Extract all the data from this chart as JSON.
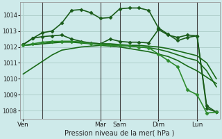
{
  "background_color": "#ceeaea",
  "grid_color": "#b0d0cc",
  "ylim": [
    1007.5,
    1014.8
  ],
  "yticks": [
    1008,
    1009,
    1010,
    1011,
    1012,
    1013,
    1014
  ],
  "xlabel": "Pression niveau de la mer( hPa )",
  "day_labels": [
    "Ven",
    "Mar",
    "Sam",
    "Dim",
    "Lun"
  ],
  "day_x": [
    0,
    48,
    60,
    84,
    108
  ],
  "xlim": [
    -2,
    122
  ],
  "vline_x": [
    12,
    48,
    60,
    84,
    108
  ],
  "vline_color": "#444444",
  "series": [
    {
      "x": [
        0,
        6,
        12,
        18,
        24,
        30,
        36,
        42,
        48,
        54,
        60,
        66,
        72,
        78,
        84,
        90,
        96,
        102,
        108,
        114,
        120
      ],
      "y": [
        1010.3,
        1010.7,
        1011.1,
        1011.5,
        1011.8,
        1011.9,
        1012.0,
        1012.05,
        1012.1,
        1012.05,
        1012.0,
        1011.9,
        1011.8,
        1011.7,
        1011.55,
        1011.4,
        1011.15,
        1010.8,
        1010.5,
        1010.1,
        1009.7
      ],
      "color": "#1a6b1a",
      "lw": 1.2,
      "marker": null
    },
    {
      "x": [
        0,
        6,
        12,
        18,
        24,
        30,
        36,
        42,
        48,
        54,
        60,
        66,
        72,
        78,
        84,
        90,
        96,
        102,
        108,
        114,
        120
      ],
      "y": [
        1012.1,
        1012.15,
        1012.2,
        1012.25,
        1012.3,
        1012.3,
        1012.25,
        1012.2,
        1012.2,
        1012.15,
        1012.1,
        1012.05,
        1012.0,
        1011.95,
        1011.85,
        1011.7,
        1011.5,
        1011.3,
        1011.15,
        1010.5,
        1009.5
      ],
      "color": "#1a6b1a",
      "lw": 1.2,
      "marker": null
    },
    {
      "x": [
        0,
        6,
        12,
        18,
        24,
        30,
        36,
        42,
        48,
        54,
        60,
        66,
        72,
        78,
        84,
        90,
        96,
        102,
        108,
        114,
        120
      ],
      "y": [
        1012.1,
        1012.15,
        1012.2,
        1012.3,
        1012.35,
        1012.35,
        1012.3,
        1012.25,
        1012.2,
        1012.2,
        1012.15,
        1012.1,
        1012.1,
        1012.05,
        1012.0,
        1011.9,
        1011.75,
        1011.6,
        1011.45,
        1011.0,
        1010.0
      ],
      "color": "#1a6b1a",
      "lw": 1.2,
      "marker": null
    },
    {
      "x": [
        0,
        6,
        12,
        18,
        24,
        30,
        36,
        42,
        48,
        54,
        60,
        66,
        72,
        78,
        84,
        90,
        96,
        102,
        108,
        114,
        120
      ],
      "y": [
        1012.15,
        1012.55,
        1012.9,
        1013.0,
        1013.5,
        1014.3,
        1014.35,
        1014.15,
        1013.8,
        1013.85,
        1014.4,
        1014.45,
        1014.45,
        1014.3,
        1013.2,
        1012.8,
        1012.4,
        1012.6,
        1012.7,
        1008.3,
        1007.9
      ],
      "color": "#1a5c1a",
      "lw": 1.2,
      "marker": "D",
      "ms": 2.5
    },
    {
      "x": [
        0,
        6,
        12,
        18,
        24,
        30,
        36,
        42,
        48,
        54,
        60,
        66,
        72,
        78,
        84,
        90,
        96,
        102,
        108,
        114,
        120
      ],
      "y": [
        1012.15,
        1012.55,
        1012.65,
        1012.7,
        1012.75,
        1012.5,
        1012.35,
        1012.25,
        1012.2,
        1012.5,
        1012.35,
        1012.3,
        1012.3,
        1012.25,
        1013.1,
        1012.75,
        1012.6,
        1012.75,
        1012.7,
        1008.15,
        1007.9
      ],
      "color": "#1a5c1a",
      "lw": 1.2,
      "marker": "D",
      "ms": 2.5
    },
    {
      "x": [
        0,
        6,
        12,
        18,
        24,
        30,
        36,
        42,
        48,
        54,
        60,
        66,
        72,
        78,
        84,
        90,
        96,
        102,
        108,
        114,
        120
      ],
      "y": [
        1012.1,
        1012.2,
        1012.3,
        1012.35,
        1012.35,
        1012.35,
        1012.3,
        1012.2,
        1012.15,
        1012.1,
        1012.1,
        1012.05,
        1012.0,
        1011.95,
        1011.55,
        1011.15,
        1010.75,
        1009.3,
        1009.0,
        1007.85,
        1007.9
      ],
      "color": "#2d8b2d",
      "lw": 1.2,
      "marker": "D",
      "ms": 2.5
    }
  ]
}
